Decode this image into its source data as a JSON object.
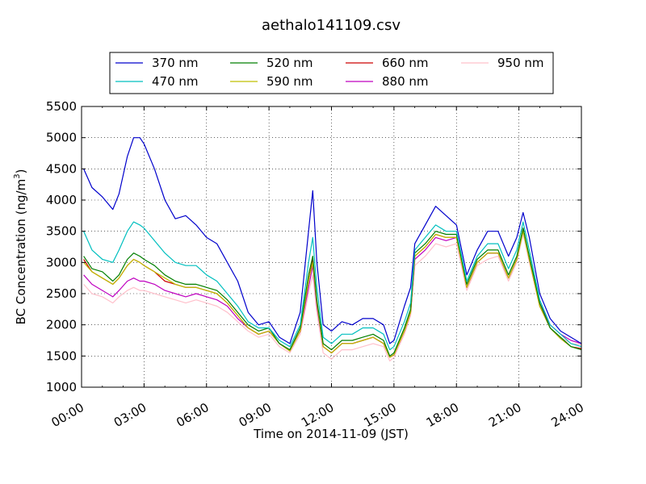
{
  "chart_data": {
    "type": "line",
    "title": "aethalo141109.csv",
    "xlabel": "Time on 2014-11-09 (JST)",
    "ylabel": "BC Concentration (ng/m",
    "ylabel_sup": "3",
    "ylabel_end": ")",
    "xlim": [
      0,
      24
    ],
    "ylim": [
      1000,
      5500
    ],
    "x_ticks": [
      0,
      3,
      6,
      9,
      12,
      15,
      18,
      21,
      24
    ],
    "x_tick_labels": [
      "00:00",
      "03:00",
      "06:00",
      "09:00",
      "12:00",
      "15:00",
      "18:00",
      "21:00",
      "24:00"
    ],
    "y_ticks": [
      1000,
      1500,
      2000,
      2500,
      3000,
      3500,
      4000,
      4500,
      5000,
      5500
    ],
    "y_tick_labels": [
      "1000",
      "1500",
      "2000",
      "2500",
      "3000",
      "3500",
      "4000",
      "4500",
      "5000",
      "5500"
    ],
    "grid": true,
    "legend_position": "top-center",
    "x": [
      0.1,
      0.5,
      1.0,
      1.5,
      1.8,
      2.2,
      2.5,
      2.8,
      3.0,
      3.5,
      4.0,
      4.5,
      5.0,
      5.5,
      6.0,
      6.5,
      7.0,
      7.5,
      8.0,
      8.5,
      9.0,
      9.5,
      10.0,
      10.5,
      10.9,
      11.1,
      11.3,
      11.6,
      12.0,
      12.5,
      13.0,
      13.5,
      14.0,
      14.5,
      14.8,
      15.0,
      15.5,
      15.8,
      16.0,
      16.5,
      17.0,
      17.5,
      18.0,
      18.5,
      19.0,
      19.5,
      20.0,
      20.5,
      20.9,
      21.2,
      21.5,
      22.0,
      22.5,
      23.0,
      23.5,
      24.0
    ],
    "series": [
      {
        "name": "370 nm",
        "color": "#0000cc",
        "values": [
          4500,
          4200,
          4050,
          3850,
          4100,
          4700,
          5000,
          5000,
          4900,
          4500,
          4000,
          3700,
          3750,
          3600,
          3400,
          3300,
          3000,
          2700,
          2200,
          2000,
          2050,
          1800,
          1700,
          2200,
          3500,
          4150,
          3000,
          2000,
          1900,
          2050,
          2000,
          2100,
          2100,
          2000,
          1700,
          1750,
          2300,
          2600,
          3300,
          3600,
          3900,
          3750,
          3600,
          2800,
          3200,
          3500,
          3500,
          3100,
          3400,
          3800,
          3400,
          2500,
          2100,
          1900,
          1800,
          1700
        ]
      },
      {
        "name": "470 nm",
        "color": "#00bfbf",
        "values": [
          3500,
          3200,
          3050,
          3000,
          3200,
          3500,
          3650,
          3600,
          3550,
          3350,
          3150,
          3000,
          2950,
          2950,
          2800,
          2700,
          2500,
          2300,
          2050,
          1950,
          1950,
          1750,
          1650,
          2000,
          3000,
          3400,
          2600,
          1800,
          1700,
          1850,
          1850,
          1950,
          1950,
          1850,
          1600,
          1650,
          2050,
          2350,
          3200,
          3400,
          3600,
          3500,
          3500,
          2700,
          3100,
          3300,
          3300,
          2900,
          3200,
          3650,
          3200,
          2400,
          2000,
          1850,
          1700,
          1650
        ]
      },
      {
        "name": "520 nm",
        "color": "#007f00",
        "values": [
          3100,
          2900,
          2850,
          2700,
          2800,
          3050,
          3150,
          3100,
          3050,
          2950,
          2800,
          2700,
          2650,
          2650,
          2600,
          2550,
          2400,
          2200,
          2000,
          1900,
          1950,
          1700,
          1600,
          1950,
          2800,
          3100,
          2400,
          1700,
          1600,
          1750,
          1750,
          1800,
          1850,
          1750,
          1500,
          1550,
          1950,
          2250,
          3150,
          3300,
          3500,
          3450,
          3450,
          2650,
          3050,
          3200,
          3200,
          2800,
          3100,
          3550,
          3100,
          2350,
          1950,
          1800,
          1650,
          1600
        ]
      },
      {
        "name": "590 nm",
        "color": "#bfbf00",
        "values": [
          3000,
          2850,
          2750,
          2650,
          2750,
          2950,
          3050,
          3000,
          2950,
          2850,
          2750,
          2650,
          2600,
          2600,
          2550,
          2500,
          2350,
          2150,
          1950,
          1850,
          1900,
          1700,
          1580,
          1900,
          2700,
          3000,
          2350,
          1650,
          1550,
          1700,
          1700,
          1750,
          1800,
          1700,
          1480,
          1520,
          1900,
          2200,
          3100,
          3250,
          3450,
          3400,
          3400,
          2600,
          3000,
          3150,
          3150,
          2750,
          3050,
          3500,
          3050,
          2300,
          1950,
          1780,
          1650,
          1600
        ]
      },
      {
        "name": "660 nm",
        "color": "#cc0000",
        "values": [
          3050,
          2850,
          2750,
          2650,
          2750,
          2950,
          3050,
          3000,
          2950,
          2850,
          2700,
          2650,
          2600,
          2600,
          2550,
          2500,
          2350,
          2150,
          1950,
          1850,
          1900,
          1700,
          1580,
          1900,
          2700,
          3050,
          2350,
          1650,
          1550,
          1700,
          1700,
          1750,
          1800,
          1700,
          1480,
          1520,
          1900,
          2200,
          3100,
          3250,
          3450,
          3400,
          3400,
          2600,
          3000,
          3150,
          3150,
          2750,
          3050,
          3550,
          3050,
          2300,
          1950,
          1780,
          1650,
          1620
        ]
      },
      {
        "name": "880 nm",
        "color": "#bf00bf",
        "values": [
          2800,
          2650,
          2550,
          2450,
          2550,
          2700,
          2750,
          2700,
          2700,
          2650,
          2550,
          2500,
          2450,
          2500,
          2450,
          2400,
          2300,
          2100,
          1950,
          1850,
          1900,
          1700,
          1600,
          1900,
          2600,
          2950,
          2300,
          1650,
          1550,
          1700,
          1700,
          1750,
          1800,
          1700,
          1480,
          1520,
          1900,
          2200,
          3050,
          3200,
          3400,
          3350,
          3400,
          2600,
          3000,
          3150,
          3150,
          2750,
          3050,
          3550,
          3050,
          2350,
          2000,
          1850,
          1750,
          1700
        ]
      },
      {
        "name": "950 nm",
        "color": "#ffc0cb",
        "values": [
          2650,
          2500,
          2450,
          2350,
          2450,
          2550,
          2600,
          2550,
          2550,
          2500,
          2450,
          2400,
          2350,
          2400,
          2350,
          2300,
          2200,
          2050,
          1900,
          1800,
          1850,
          1650,
          1550,
          1850,
          2500,
          2800,
          2200,
          1550,
          1450,
          1600,
          1600,
          1650,
          1700,
          1650,
          1420,
          1480,
          1850,
          2150,
          2950,
          3100,
          3300,
          3250,
          3300,
          2550,
          2950,
          3050,
          3100,
          2700,
          3000,
          3450,
          3000,
          2300,
          1950,
          1800,
          1700,
          1680
        ]
      }
    ]
  }
}
